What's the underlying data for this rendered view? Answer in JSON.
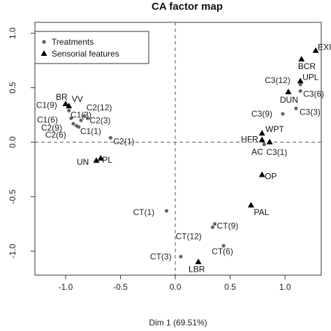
{
  "chart_data": {
    "type": "scatter",
    "title": "CA factor map",
    "xlabel": "Dim 1 (69.51%)",
    "ylabel": "",
    "xlim": [
      -1.28,
      1.33
    ],
    "ylim": [
      -1.22,
      1.1
    ],
    "xticks": [
      -1.0,
      -0.5,
      0.0,
      0.5,
      1.0
    ],
    "xtick_labels": [
      "-1.0",
      "-0.5",
      "0.0",
      "0.5",
      "1.0"
    ],
    "yticks": [
      -1.0,
      -0.5,
      0.0,
      0.5,
      1.0
    ],
    "ytick_labels": [
      "-1.0",
      "-0.5",
      "0.0",
      "0.5",
      "1.0"
    ],
    "grid": false,
    "reference_lines": {
      "x": 0,
      "y": 0,
      "style": "dashed"
    },
    "legend": {
      "placement": "top-left",
      "entries": [
        {
          "label": "Treatments",
          "marker": "circle"
        },
        {
          "label": "Sensorial features",
          "marker": "triangle"
        }
      ]
    },
    "colors": {
      "treatments": "#666666",
      "features": "#000000",
      "labels": "#222222"
    },
    "series": [
      {
        "name": "Treatments",
        "marker": "circle",
        "points": [
          {
            "label": "C1(9)",
            "x": -0.97,
            "y": 0.29
          },
          {
            "label": "C1(6)",
            "x": -0.95,
            "y": 0.22
          },
          {
            "label": "C2(9)",
            "x": -0.93,
            "y": 0.17
          },
          {
            "label": "C2(6)",
            "x": -0.9,
            "y": 0.15
          },
          {
            "label": "C1(3)",
            "x": -0.86,
            "y": 0.2
          },
          {
            "label": "C2(12)",
            "x": -0.83,
            "y": 0.24
          },
          {
            "label": "C2(3)",
            "x": -0.8,
            "y": 0.22
          },
          {
            "label": "C1(1)",
            "x": -0.88,
            "y": 0.14
          },
          {
            "label": "C2(1)",
            "x": -0.59,
            "y": 0.04
          },
          {
            "label": "C3(12)",
            "x": 1.14,
            "y": 0.53
          },
          {
            "label": "C3(6)",
            "x": 1.14,
            "y": 0.47
          },
          {
            "label": "C3(9)",
            "x": 0.98,
            "y": 0.26
          },
          {
            "label": "C3(3)",
            "x": 1.1,
            "y": 0.31
          },
          {
            "label": "C3(1)",
            "x": 0.81,
            "y": -0.02
          },
          {
            "label": "CT(1)",
            "x": -0.08,
            "y": -0.63
          },
          {
            "label": "CT(12)",
            "x": 0.34,
            "y": -0.78
          },
          {
            "label": "CT(9)",
            "x": 0.36,
            "y": -0.75
          },
          {
            "label": "CT(6)",
            "x": 0.44,
            "y": -0.95
          },
          {
            "label": "CT(3)",
            "x": 0.05,
            "y": -1.05
          }
        ]
      },
      {
        "name": "Sensorial features",
        "marker": "triangle",
        "points": [
          {
            "label": "BR",
            "x": -1.0,
            "y": 0.35
          },
          {
            "label": "VV",
            "x": -0.97,
            "y": 0.33
          },
          {
            "label": "UN",
            "x": -0.72,
            "y": -0.17
          },
          {
            "label": "PL",
            "x": -0.68,
            "y": -0.15
          },
          {
            "label": "EXU",
            "x": 1.28,
            "y": 0.84
          },
          {
            "label": "BCR",
            "x": 1.15,
            "y": 0.76
          },
          {
            "label": "UPL",
            "x": 1.14,
            "y": 0.56
          },
          {
            "label": "DUN",
            "x": 1.03,
            "y": 0.46
          },
          {
            "label": "WPT",
            "x": 0.79,
            "y": 0.08
          },
          {
            "label": "HFR",
            "x": 0.79,
            "y": 0.02
          },
          {
            "label": "AC",
            "x": 0.86,
            "y": 0.0
          },
          {
            "label": "OP",
            "x": 0.79,
            "y": -0.3
          },
          {
            "label": "PAL",
            "x": 0.69,
            "y": -0.58
          },
          {
            "label": "LBR",
            "x": 0.21,
            "y": -1.1
          }
        ]
      }
    ]
  }
}
